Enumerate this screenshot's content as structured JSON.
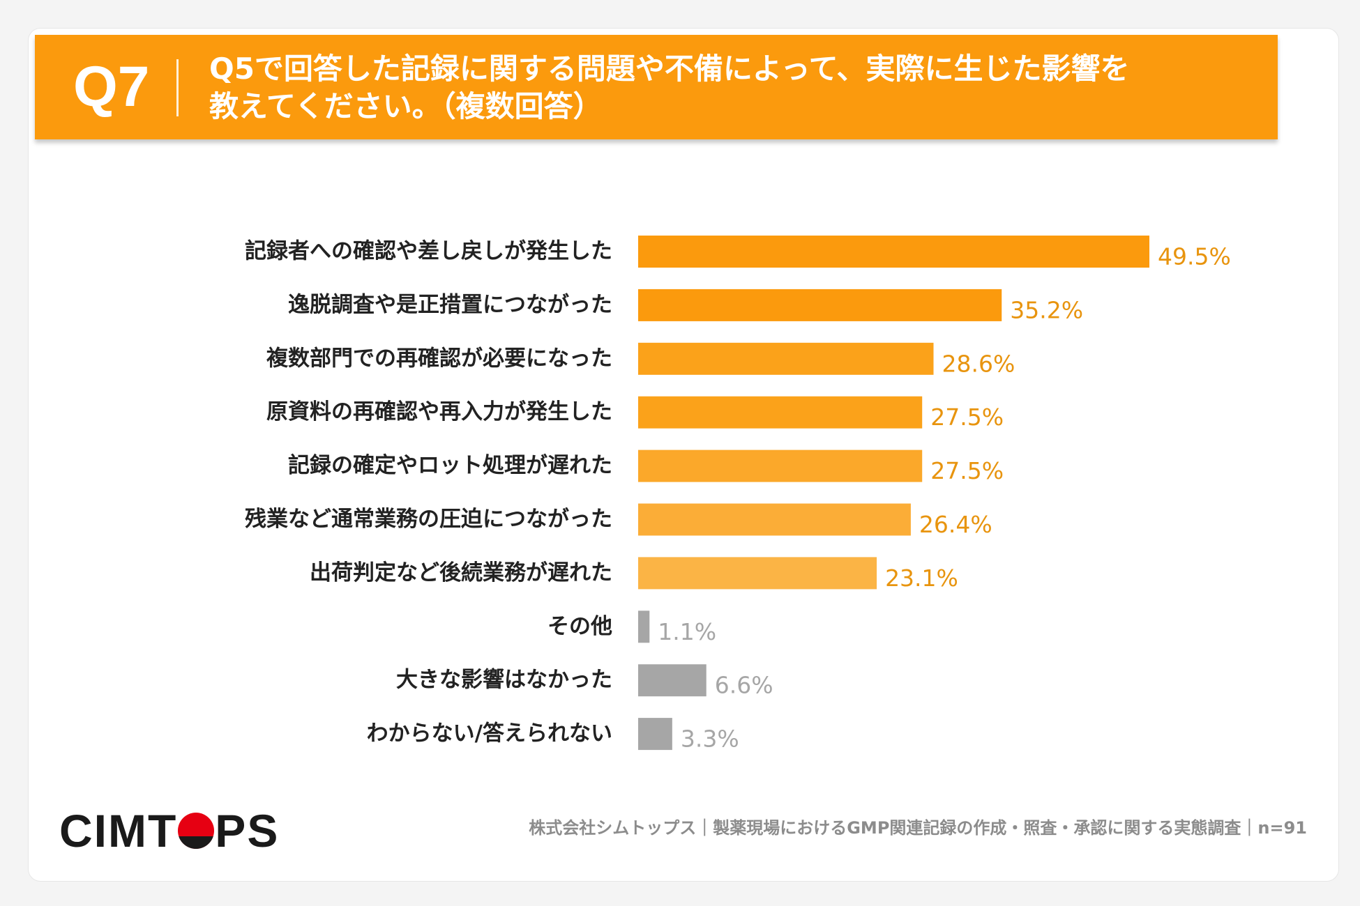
{
  "header": {
    "question_no": "Q7",
    "title_line1": "Q5で回答した記録に関する問題や不備によって、実際に生じた影響を",
    "title_line2": "教えてください。（複数回答）"
  },
  "chart_data": {
    "type": "bar",
    "orientation": "horizontal",
    "categories": [
      "記録者への確認や差し戻しが発生した",
      "逸脱調査や是正措置につながった",
      "複数部門での再確認が必要になった",
      "原資料の再確認や再入力が発生した",
      "記録の確定やロット処理が遅れた",
      "残業など通常業務の圧迫につながった",
      "出荷判定など後続業務が遅れた",
      "その他",
      "大きな影響はなかった",
      "わからない/答えられない"
    ],
    "values": [
      49.5,
      35.2,
      28.6,
      27.5,
      27.5,
      26.4,
      23.1,
      1.1,
      6.6,
      3.3
    ],
    "value_labels": [
      "49.5%",
      "35.2%",
      "28.6%",
      "27.5%",
      "27.5%",
      "26.4%",
      "23.1%",
      "1.1%",
      "6.6%",
      "3.3%"
    ],
    "unit": "%",
    "bar_colors": [
      "#fb9a0d",
      "#fb9a0d",
      "#fba21a",
      "#fba21a",
      "#fba82a",
      "#fbad37",
      "#fbb445",
      "#a6a6a6",
      "#a6a6a6",
      "#a6a6a6"
    ],
    "label_colors": [
      "#e8940e",
      "#e8940e",
      "#e8940e",
      "#e8940e",
      "#e8940e",
      "#e8940e",
      "#e8940e",
      "#a6a6a6",
      "#a6a6a6",
      "#a6a6a6"
    ],
    "xlim": [
      0,
      50
    ]
  },
  "colors": {
    "accent": "#fb9a0d",
    "gray": "#a6a6a6"
  },
  "footer": {
    "logo": "CIMTOPS",
    "text": "株式会社シムトップス｜製薬現場におけるGMP関連記録の作成・照査・承認に関する実態調査｜n=91"
  }
}
